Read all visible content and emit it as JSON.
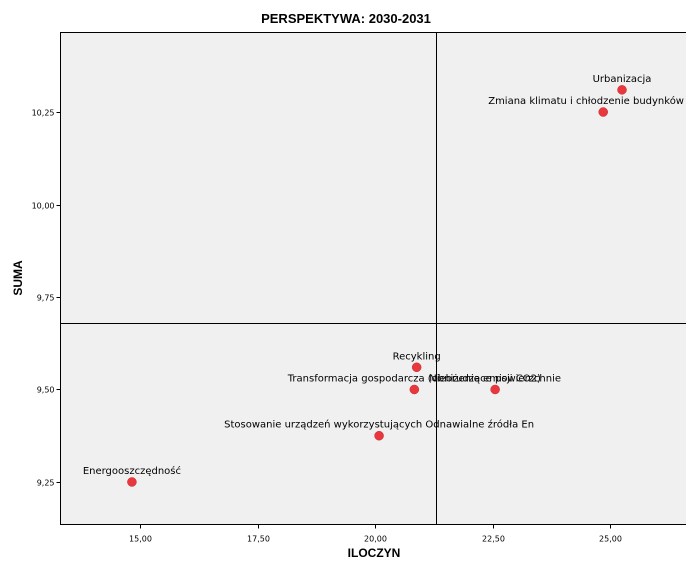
{
  "chart_data": {
    "type": "scatter",
    "title": "PERSPEKTYWA: 2030-2031",
    "xlabel": "ILOCZYN",
    "ylabel": "SUMA",
    "xlim": [
      13.3,
      26.75
    ],
    "ylim": [
      9.135,
      10.465
    ],
    "xticks": [
      15.0,
      17.5,
      20.0,
      22.5,
      25.0
    ],
    "xtick_labels": [
      "15,00",
      "17,50",
      "20,00",
      "22,50",
      "25,00"
    ],
    "yticks": [
      9.25,
      9.5,
      9.75,
      10.0,
      10.25
    ],
    "ytick_labels": [
      "9,25",
      "9,50",
      "9,75",
      "10,00",
      "10,25"
    ],
    "reference_lines": {
      "x": 21.3,
      "y": 9.68
    },
    "grid": false,
    "point_color": "#e8383d",
    "plot_background": "#f0f0f0",
    "points": [
      {
        "label": "Urbanizacja",
        "x": 25.25,
        "y": 10.31
      },
      {
        "label": "Zmiana klimatu i chłodzenie budynków",
        "x": 24.85,
        "y": 10.25
      },
      {
        "label": "Recykling",
        "x": 20.88,
        "y": 9.56
      },
      {
        "label": "Niebrudzące powierzchnie",
        "x": 22.55,
        "y": 9.5
      },
      {
        "label": "Transformacja gospodarcza (obniżenie emisji CO2)",
        "x": 20.83,
        "y": 9.5
      },
      {
        "label": "Stosowanie urządzeń wykorzystujących Odnawialne źródła En",
        "x": 20.08,
        "y": 9.375
      },
      {
        "label": "Energooszczędność",
        "x": 14.82,
        "y": 9.25
      }
    ]
  }
}
